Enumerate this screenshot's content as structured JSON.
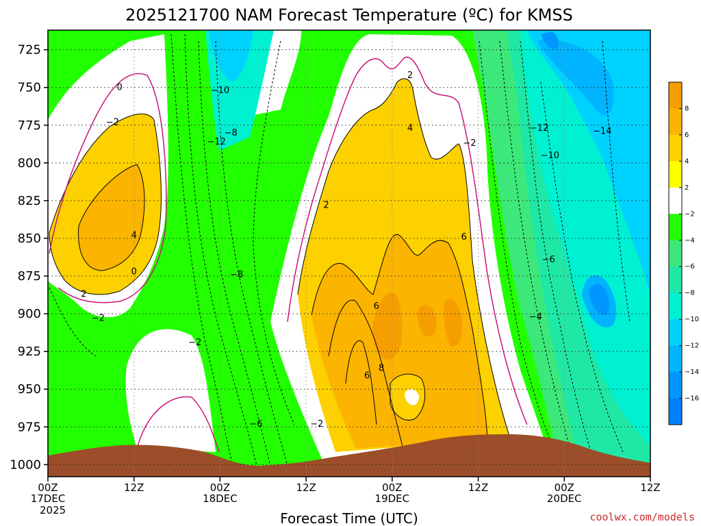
{
  "chart_data": {
    "type": "heatmap",
    "title": "2025121700 NAM Forecast Temperature (ºC) for KMSS",
    "xlabel": "Forecast Time (UTC)",
    "ylabel": "",
    "x_ticks": [
      {
        "label": "00Z",
        "sub": "17DEC",
        "sub2": "2025",
        "hour": 0
      },
      {
        "label": "12Z",
        "sub": "",
        "sub2": "",
        "hour": 12
      },
      {
        "label": "00Z",
        "sub": "18DEC",
        "sub2": "",
        "hour": 24
      },
      {
        "label": "12Z",
        "sub": "",
        "sub2": "",
        "hour": 36
      },
      {
        "label": "00Z",
        "sub": "19DEC",
        "sub2": "",
        "hour": 48
      },
      {
        "label": "12Z",
        "sub": "",
        "sub2": "",
        "hour": 60
      },
      {
        "label": "00Z",
        "sub": "20DEC",
        "sub2": "",
        "hour": 72
      },
      {
        "label": "12Z",
        "sub": "",
        "sub2": "",
        "hour": 84
      }
    ],
    "xlim": [
      0,
      84
    ],
    "y_ticks": [
      "725",
      "750",
      "775",
      "800",
      "825",
      "850",
      "875",
      "900",
      "925",
      "950",
      "975",
      "1000"
    ],
    "ylim": [
      1008,
      712
    ],
    "colorbar": {
      "levels": [
        "8",
        "6",
        "4",
        "2",
        "−2",
        "−4",
        "−6",
        "−8",
        "−10",
        "−12",
        "−14",
        "−16"
      ],
      "colors": [
        "#f59e00",
        "#fbb400",
        "#fdd000",
        "#ffff00",
        "#ffffff",
        "#22ff00",
        "#3de87a",
        "#1fe8a6",
        "#00f0d2",
        "#00d2ff",
        "#00b4ff",
        "#0096ff",
        "#0080ff"
      ]
    },
    "grid": true,
    "contour_labels": [
      {
        "text": "0",
        "hour": 10.0,
        "p": 750
      },
      {
        "text": "−10",
        "hour": 24.0,
        "p": 752
      },
      {
        "text": "−2",
        "hour": 9.0,
        "p": 773
      },
      {
        "text": "−8",
        "hour": 25.5,
        "p": 780
      },
      {
        "text": "−12",
        "hour": 23.5,
        "p": 786
      },
      {
        "text": "2",
        "hour": 50.5,
        "p": 742
      },
      {
        "text": "4",
        "hour": 50.5,
        "p": 777
      },
      {
        "text": "−2",
        "hour": 58.8,
        "p": 787
      },
      {
        "text": "−12",
        "hour": 68.5,
        "p": 777
      },
      {
        "text": "−14",
        "hour": 77.3,
        "p": 779
      },
      {
        "text": "−10",
        "hour": 70.0,
        "p": 795
      },
      {
        "text": "2",
        "hour": 38.8,
        "p": 828
      },
      {
        "text": "4",
        "hour": 12.0,
        "p": 848
      },
      {
        "text": "6",
        "hour": 58.0,
        "p": 849
      },
      {
        "text": "0",
        "hour": 12.0,
        "p": 872
      },
      {
        "text": "−8",
        "hour": 26.3,
        "p": 874
      },
      {
        "text": "−6",
        "hour": 69.8,
        "p": 864
      },
      {
        "text": "2",
        "hour": 5.0,
        "p": 887
      },
      {
        "text": "6",
        "hour": 45.8,
        "p": 895
      },
      {
        "text": "−2",
        "hour": 7.0,
        "p": 903
      },
      {
        "text": "−4",
        "hour": 68.0,
        "p": 902
      },
      {
        "text": "−2",
        "hour": 20.5,
        "p": 919
      },
      {
        "text": "8",
        "hour": 46.5,
        "p": 936
      },
      {
        "text": "6",
        "hour": 44.5,
        "p": 941
      },
      {
        "text": "−6",
        "hour": 29.0,
        "p": 973
      },
      {
        "text": "−2",
        "hour": 37.5,
        "p": 973
      }
    ]
  },
  "credit": "coolwx.com/models"
}
